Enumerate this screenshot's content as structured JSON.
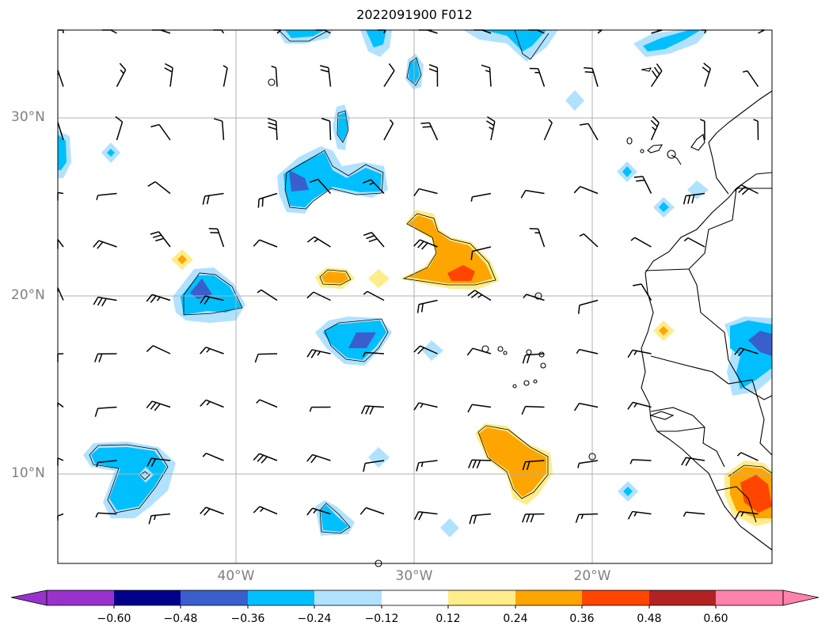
{
  "title": "2022091900 F012",
  "map": {
    "lat_range": [
      5,
      35
    ],
    "lon_range": [
      -50,
      -10
    ],
    "lat_labels": [
      "30°N",
      "20°N",
      "10°N"
    ],
    "lon_labels": [
      "40°W",
      "30°W",
      "20°W"
    ],
    "gridlines": true
  },
  "colorbar": {
    "labels": [
      "−0.60",
      "−0.48",
      "−0.36",
      "−0.24",
      "−0.12",
      "0.12",
      "0.24",
      "0.36",
      "0.48",
      "0.60"
    ],
    "colors": [
      "#9932cc",
      "#00008b",
      "#3a5fcd",
      "#00bfff",
      "#b0e2ff",
      "#ffffff",
      "#ffec8b",
      "#ffa500",
      "#ff4500",
      "#b22222",
      "#ff82ab"
    ]
  }
}
